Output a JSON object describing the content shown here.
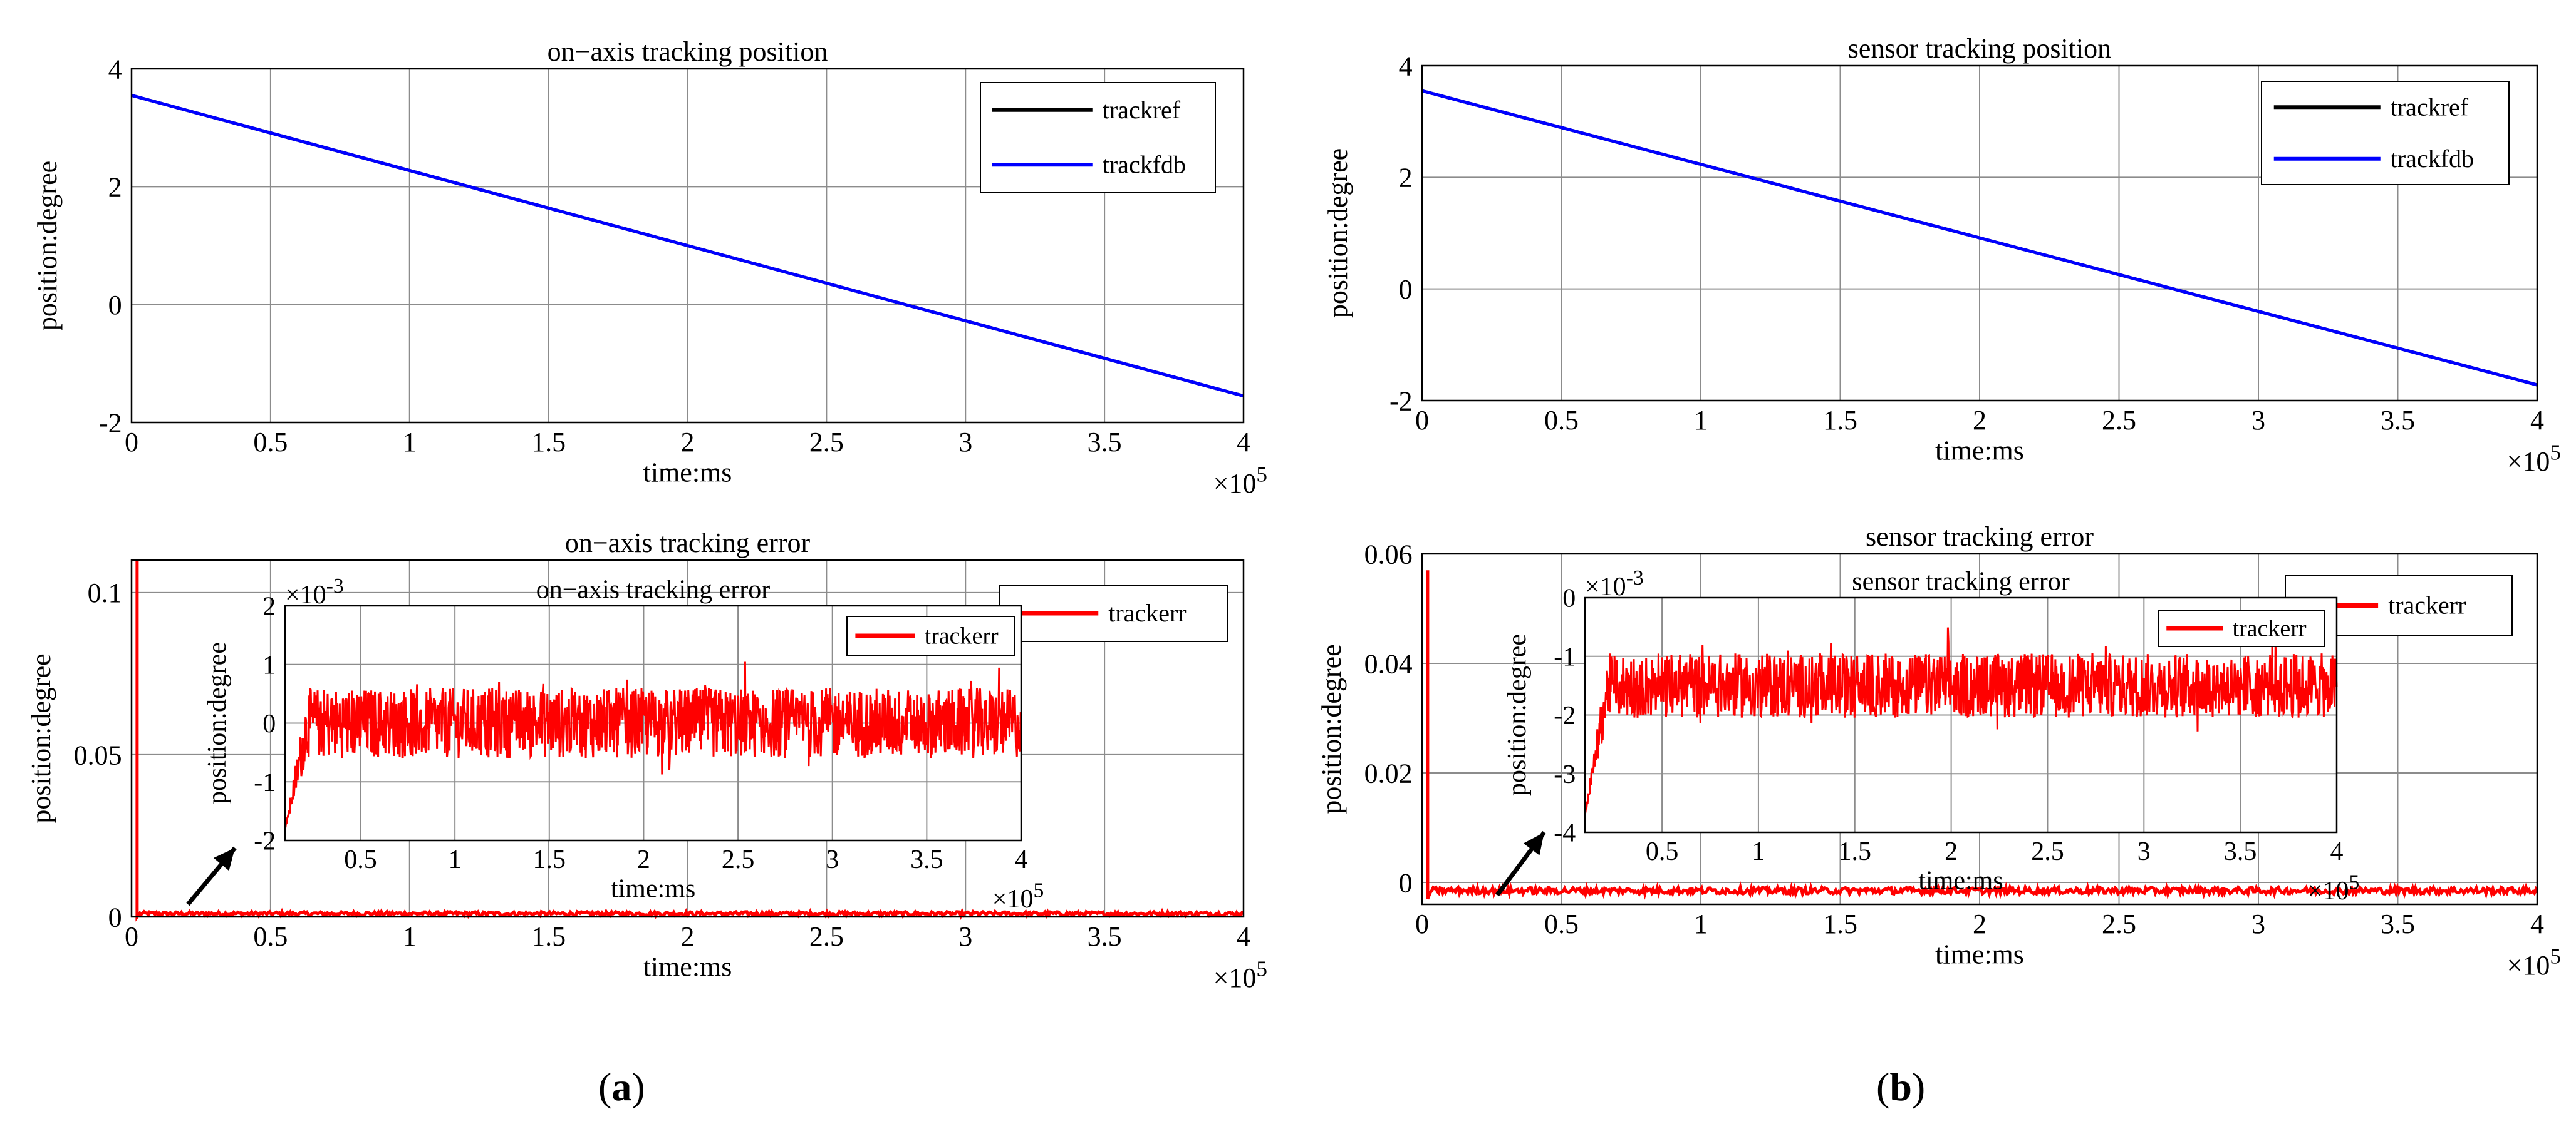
{
  "colors": {
    "ref": "#000000",
    "fdb": "#0000ff",
    "err": "#ff0000",
    "grid": "#8c8c8c",
    "axis": "#000000"
  },
  "captions": {
    "a": "a",
    "b": "b"
  },
  "chart_data": [
    {
      "id": "a_pos",
      "type": "line",
      "title": "on−axis tracking position",
      "xlabel": "time:ms",
      "ylabel": "position:degree",
      "xlim": [
        0,
        4
      ],
      "ylim": [
        -2,
        4
      ],
      "xticks": [
        0,
        0.5,
        1,
        1.5,
        2,
        2.5,
        3,
        3.5,
        4
      ],
      "xticklabels": [
        "0",
        "0.5",
        "1",
        "1.5",
        "2",
        "2.5",
        "3",
        "3.5",
        "4"
      ],
      "yticks": [
        -2,
        0,
        2,
        4
      ],
      "yticklabels": [
        "-2",
        "0",
        "2",
        "4"
      ],
      "x_exponent": "5",
      "legend": [
        "trackref",
        "trackfdb"
      ],
      "series": [
        {
          "name": "trackref",
          "x": [
            0,
            4
          ],
          "y": [
            3.55,
            -1.55
          ]
        },
        {
          "name": "trackfdb",
          "x": [
            0,
            4
          ],
          "y": [
            3.55,
            -1.55
          ]
        }
      ]
    },
    {
      "id": "a_err",
      "type": "line",
      "title": "on−axis tracking error",
      "xlabel": "time:ms",
      "ylabel": "position:degree",
      "xlim": [
        0,
        4
      ],
      "ylim": [
        0,
        0.11
      ],
      "xticks": [
        0,
        0.5,
        1,
        1.5,
        2,
        2.5,
        3,
        3.5,
        4
      ],
      "xticklabels": [
        "0",
        "0.5",
        "1",
        "1.5",
        "2",
        "2.5",
        "3",
        "3.5",
        "4"
      ],
      "yticks": [
        0,
        0.05,
        0.1
      ],
      "yticklabels": [
        "0",
        "0.05",
        "0.1"
      ],
      "x_exponent": "5",
      "legend": [
        "trackerr"
      ],
      "series": [
        {
          "name": "trackerr",
          "spike": [
            0,
            0.11
          ],
          "baseline": 0.001,
          "noise": 0.0012
        }
      ],
      "inset": {
        "title": "on−axis tracking error",
        "xlabel": "time:ms",
        "ylabel": "position:degree",
        "xlim": [
          0.1,
          4
        ],
        "ylim": [
          -2,
          2
        ],
        "xticks": [
          0.5,
          1,
          1.5,
          2,
          2.5,
          3,
          3.5,
          4
        ],
        "xticklabels": [
          "0.5",
          "1",
          "1.5",
          "2",
          "2.5",
          "3",
          "3.5",
          "4"
        ],
        "yticks": [
          -2,
          -1,
          0,
          1,
          2
        ],
        "yticklabels": [
          "-2",
          "-1",
          "0",
          "1",
          "2"
        ],
        "y_exponent": "-3",
        "x_exponent": "5",
        "legend": [
          "trackerr"
        ],
        "series": [
          {
            "name": "trackerr",
            "start": -1.8,
            "mean": 0,
            "amplitude": 0.6,
            "spike": 1.1
          }
        ]
      }
    },
    {
      "id": "b_pos",
      "type": "line",
      "title": "sensor tracking position",
      "xlabel": "time:ms",
      "ylabel": "position:degree",
      "xlim": [
        0,
        4
      ],
      "ylim": [
        -2,
        4
      ],
      "xticks": [
        0,
        0.5,
        1,
        1.5,
        2,
        2.5,
        3,
        3.5,
        4
      ],
      "xticklabels": [
        "0",
        "0.5",
        "1",
        "1.5",
        "2",
        "2.5",
        "3",
        "3.5",
        "4"
      ],
      "yticks": [
        -2,
        0,
        2,
        4
      ],
      "yticklabels": [
        "-2",
        "0",
        "2",
        "4"
      ],
      "x_exponent": "5",
      "legend": [
        "trackref",
        "trackfdb"
      ],
      "series": [
        {
          "name": "trackref",
          "x": [
            0,
            4
          ],
          "y": [
            3.55,
            -1.72
          ]
        },
        {
          "name": "trackfdb",
          "x": [
            0,
            4
          ],
          "y": [
            3.55,
            -1.72
          ]
        }
      ]
    },
    {
      "id": "b_err",
      "type": "line",
      "title": "sensor tracking error",
      "xlabel": "time:ms",
      "ylabel": "position:degree",
      "xlim": [
        0,
        4
      ],
      "ylim": [
        -0.004,
        0.06
      ],
      "xticks": [
        0,
        0.5,
        1,
        1.5,
        2,
        2.5,
        3,
        3.5,
        4
      ],
      "xticklabels": [
        "0",
        "0.5",
        "1",
        "1.5",
        "2",
        "2.5",
        "3",
        "3.5",
        "4"
      ],
      "yticks": [
        0,
        0.02,
        0.04,
        0.06
      ],
      "yticklabels": [
        "0",
        "0.02",
        "0.04",
        "0.06"
      ],
      "x_exponent": "5",
      "legend": [
        "trackerr"
      ],
      "series": [
        {
          "name": "trackerr",
          "spike": [
            -0.003,
            0.057
          ],
          "baseline": -0.0015,
          "noise": 0.0012
        }
      ],
      "inset": {
        "title": "sensor tracking error",
        "xlabel": "time:ms",
        "ylabel": "position:degree",
        "xlim": [
          0.1,
          4
        ],
        "ylim": [
          -4,
          0
        ],
        "xticks": [
          0.5,
          1,
          1.5,
          2,
          2.5,
          3,
          3.5,
          4
        ],
        "xticklabels": [
          "0.5",
          "1",
          "1.5",
          "2",
          "2.5",
          "3",
          "3.5",
          "4"
        ],
        "yticks": [
          -4,
          -3,
          -2,
          -1,
          0
        ],
        "yticklabels": [
          "-4",
          "-3",
          "-2",
          "-1",
          "0"
        ],
        "y_exponent": "-3",
        "x_exponent": "5",
        "legend": [
          "trackerr"
        ],
        "series": [
          {
            "name": "trackerr",
            "start": -3.7,
            "mean": -1.5,
            "amplitude": 0.55,
            "spike": 0.9
          }
        ]
      }
    }
  ]
}
